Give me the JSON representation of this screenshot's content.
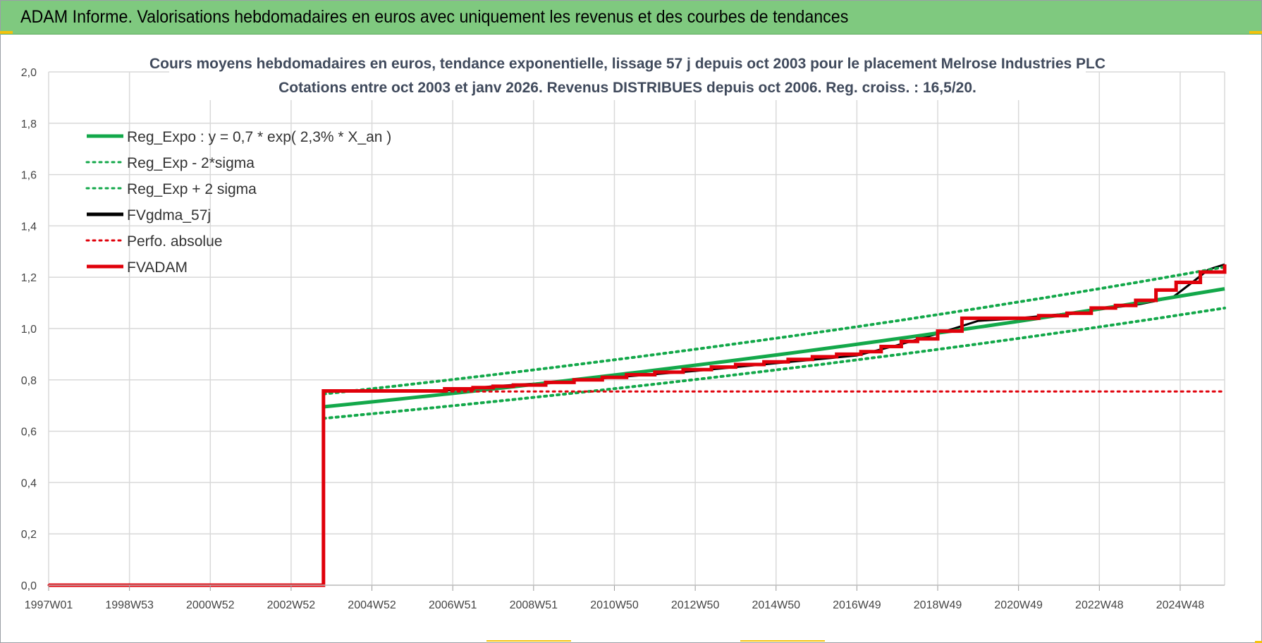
{
  "banner": {
    "title": "ADAM Informe. Valorisations hebdomadaires en euros avec uniquement les revenus et des courbes de tendances"
  },
  "colors": {
    "banner": "#7fc97f",
    "green": "#13a84a",
    "red": "#e0000a",
    "black": "#000000",
    "grid": "#d9d9d9"
  },
  "chart_data": {
    "type": "line",
    "title_lines": [
      "Cours moyens hebdomadaires en euros, tendance exponentielle, lissage 57 j depuis oct 2003 pour le placement Melrose Industries PLC",
      "Cotations entre oct 2003 et janv 2026. Revenus DISTRIBUES depuis oct 2006. Reg. croiss. : 16,5/20."
    ],
    "x_tick_labels": [
      "1997W01",
      "1998W53",
      "2000W52",
      "2002W52",
      "2004W52",
      "2006W51",
      "2008W51",
      "2010W50",
      "2012W50",
      "2014W50",
      "2016W49",
      "2018W49",
      "2020W49",
      "2022W48",
      "2024W48"
    ],
    "x_tick_years": [
      1997.0,
      1999.0,
      2001.0,
      2003.0,
      2005.0,
      2007.0,
      2009.0,
      2011.0,
      2013.0,
      2015.0,
      2017.0,
      2019.0,
      2021.0,
      2023.0,
      2025.0
    ],
    "xlim": [
      1997.0,
      2026.1
    ],
    "y_tick_labels": [
      "0,0",
      "0,2",
      "0,4",
      "0,6",
      "0,8",
      "1,0",
      "1,2",
      "1,4",
      "1,6",
      "1,8",
      "2,0"
    ],
    "y_ticks": [
      0,
      0.2,
      0.4,
      0.6,
      0.8,
      1.0,
      1.2,
      1.4,
      1.6,
      1.8,
      2.0
    ],
    "ylim": [
      0,
      2.0
    ],
    "grid": true,
    "legend_position": "top-left",
    "legend": [
      {
        "label": "Reg_Expo : y = 0,7 * exp( 2,3% *  X_an )",
        "color": "#13a84a",
        "style": "solid"
      },
      {
        "label": "Reg_Exp - 2*sigma",
        "color": "#13a84a",
        "style": "dotted"
      },
      {
        "label": "Reg_Exp + 2 sigma",
        "color": "#13a84a",
        "style": "dotted"
      },
      {
        "label": "FVgdma_57j",
        "color": "#000000",
        "style": "solid"
      },
      {
        "label": "Perfo. absolue",
        "color": "#e0000a",
        "style": "dotted"
      },
      {
        "label": "FVADAM",
        "color": "#e0000a",
        "style": "solid"
      }
    ],
    "series": [
      {
        "name": "Reg_Expo : y = 0,7 * exp( 2,3% *  X_an )",
        "color": "#13a84a",
        "style": "solid",
        "width": 5,
        "x": [
          2003.8,
          2026.1
        ],
        "y": [
          0.695,
          1.155
        ],
        "interp": "exponential"
      },
      {
        "name": "Reg_Exp - 2*sigma",
        "color": "#13a84a",
        "style": "dotted",
        "width": 4,
        "x": [
          2003.8,
          2026.1
        ],
        "y": [
          0.65,
          1.08
        ],
        "interp": "exponential"
      },
      {
        "name": "Reg_Exp + 2 sigma",
        "color": "#13a84a",
        "style": "dotted",
        "width": 4,
        "x": [
          2003.8,
          2026.1
        ],
        "y": [
          0.745,
          1.24
        ],
        "interp": "exponential"
      },
      {
        "name": "FVgdma_57j",
        "color": "#000000",
        "style": "solid",
        "width": 3,
        "x": [
          1997.0,
          2003.8,
          2003.8,
          2007.0,
          2008.0,
          2009.0,
          2011.0,
          2013.0,
          2015.0,
          2016.0,
          2017.0,
          2018.0,
          2019.0,
          2020.0,
          2021.0,
          2022.0,
          2023.0,
          2024.0,
          2024.8,
          2025.3,
          2025.7,
          2026.1
        ],
        "y": [
          0.0,
          0.0,
          0.755,
          0.76,
          0.775,
          0.785,
          0.81,
          0.835,
          0.865,
          0.88,
          0.895,
          0.935,
          0.98,
          1.03,
          1.04,
          1.055,
          1.075,
          1.095,
          1.12,
          1.18,
          1.23,
          1.25
        ]
      },
      {
        "name": "Perfo. absolue",
        "color": "#e0000a",
        "style": "dotted",
        "width": 3,
        "x": [
          1997.0,
          2003.8,
          2003.8,
          2026.1
        ],
        "y": [
          0.0,
          0.0,
          0.755,
          0.755
        ]
      },
      {
        "name": "FVADAM",
        "color": "#e0000a",
        "style": "step",
        "width": 5,
        "x": [
          1997.0,
          2003.8,
          2003.8,
          2006.8,
          2007.5,
          2008.0,
          2008.5,
          2009.3,
          2010.0,
          2010.7,
          2011.3,
          2012.0,
          2012.7,
          2013.4,
          2014.0,
          2014.7,
          2015.3,
          2015.9,
          2016.5,
          2017.1,
          2017.6,
          2018.1,
          2018.5,
          2019.0,
          2019.6,
          2021.0,
          2021.5,
          2022.2,
          2022.8,
          2023.4,
          2023.9,
          2024.4,
          2024.9,
          2025.5,
          2026.1
        ],
        "y": [
          0.0,
          0.0,
          0.757,
          0.765,
          0.77,
          0.775,
          0.78,
          0.79,
          0.8,
          0.81,
          0.82,
          0.83,
          0.84,
          0.85,
          0.86,
          0.87,
          0.88,
          0.89,
          0.9,
          0.91,
          0.93,
          0.95,
          0.96,
          0.99,
          1.04,
          1.04,
          1.05,
          1.06,
          1.08,
          1.09,
          1.11,
          1.15,
          1.18,
          1.22,
          1.25
        ]
      }
    ]
  }
}
